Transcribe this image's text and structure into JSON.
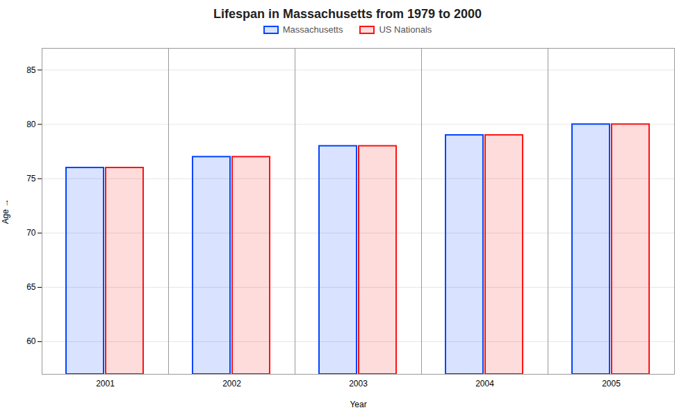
{
  "chart_data": {
    "type": "bar",
    "title": "Lifespan in Massachusetts from 1979 to 2000",
    "x_label": "Year",
    "y_label": "Age",
    "categories": [
      "2001",
      "2002",
      "2003",
      "2004",
      "2005"
    ],
    "series": [
      {
        "name": "Massachusetts",
        "color": "#0044ff",
        "values": [
          76,
          77,
          78,
          79,
          80
        ]
      },
      {
        "name": "US Nationals",
        "color": "#ff1111",
        "values": [
          76,
          77,
          78,
          79,
          80
        ]
      }
    ],
    "ylim": [
      57,
      87
    ],
    "yticks": [
      60,
      65,
      70,
      75,
      80,
      85
    ],
    "grid": true,
    "legend": "top"
  }
}
